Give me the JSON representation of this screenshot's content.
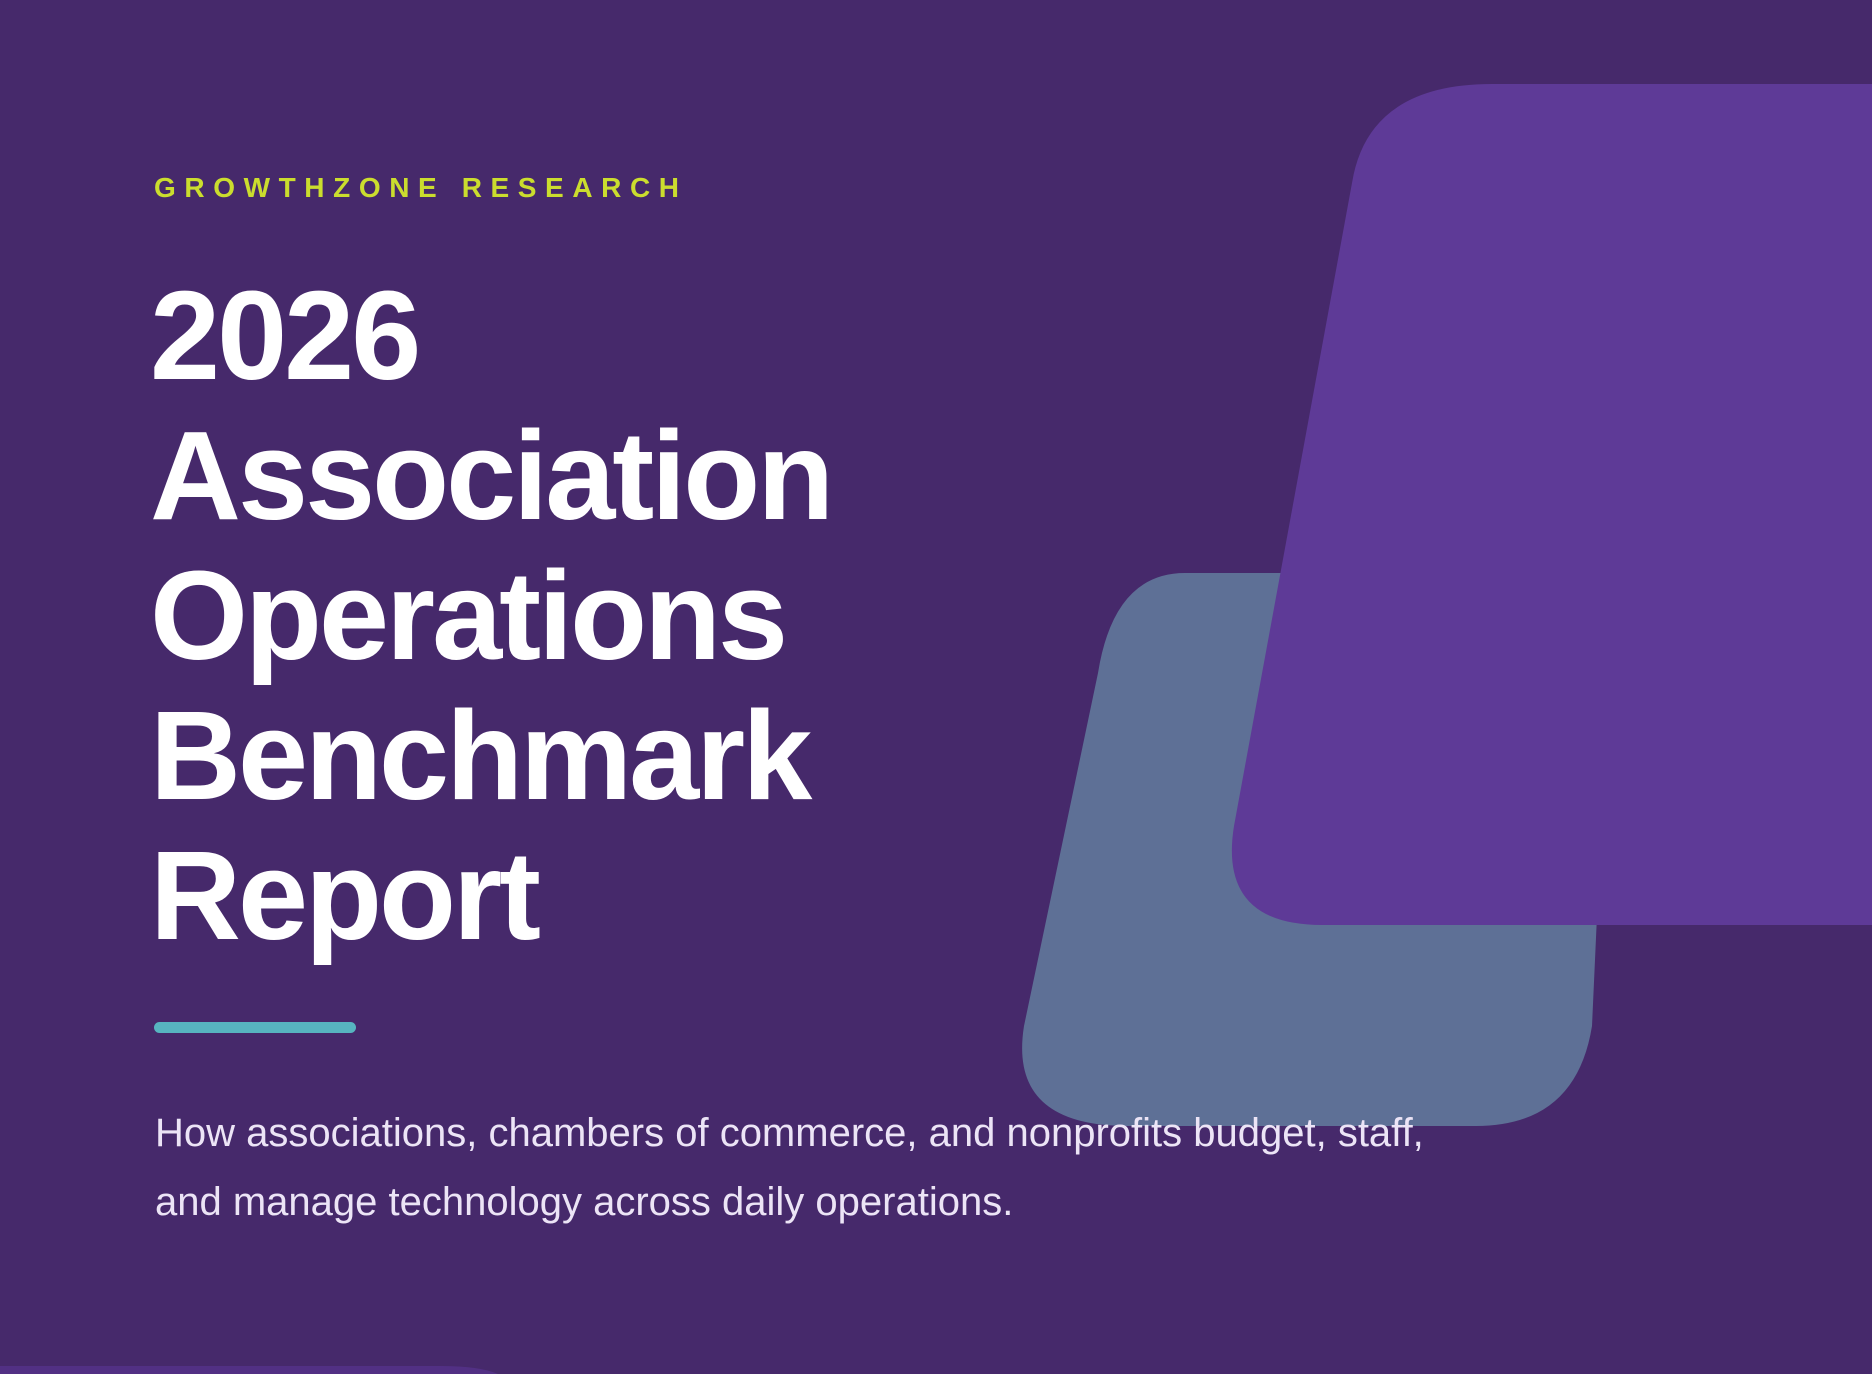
{
  "cover": {
    "eyebrow": "GROWTHZONE RESEARCH",
    "title_lines": [
      "2026",
      "Association",
      "Operations",
      "Benchmark",
      "Report"
    ],
    "subtitle": "How associations, chambers of commerce, and nonprofits budget, staff, and manage technology across daily operations."
  },
  "colors": {
    "background": "#46296b",
    "eyebrow": "#cbdd2e",
    "title": "#ffffff",
    "subtitle": "#ece4f6",
    "accent_rule": "#57b4c0",
    "shape_front": "#5e3a97",
    "shape_back": "#5e7096",
    "shape_corner": "#523084"
  }
}
